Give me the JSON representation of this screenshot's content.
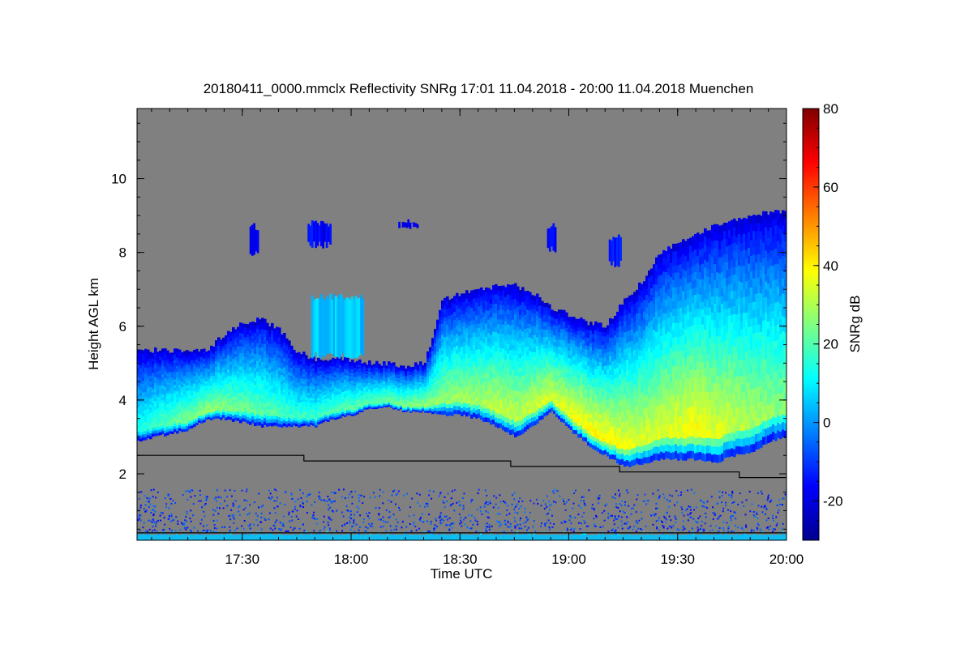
{
  "chart_data": {
    "type": "heatmap",
    "title": "20180411_0000.mmclx Reflectivity SNRg   17:01 11.04.2018 - 20:00 11.04.2018 Muenchen",
    "xlabel": "Time UTC",
    "ylabel": "Height AGL km",
    "colorbar_label": "SNRg dB",
    "xlim_minutes": [
      1021,
      1200
    ],
    "ylim": [
      0.2,
      11.9
    ],
    "x_ticks": [
      {
        "value": 1050,
        "label": "17:30"
      },
      {
        "value": 1080,
        "label": "18:00"
      },
      {
        "value": 1110,
        "label": "18:30"
      },
      {
        "value": 1140,
        "label": "19:00"
      },
      {
        "value": 1170,
        "label": "19:30"
      },
      {
        "value": 1200,
        "label": "20:00"
      }
    ],
    "y_ticks": [
      {
        "value": 2,
        "label": "2"
      },
      {
        "value": 4,
        "label": "4"
      },
      {
        "value": 6,
        "label": "6"
      },
      {
        "value": 8,
        "label": "8"
      },
      {
        "value": 10,
        "label": "10"
      }
    ],
    "colorbar": {
      "range": [
        -30,
        80
      ],
      "ticks": [
        {
          "value": -20,
          "label": "-20"
        },
        {
          "value": 0,
          "label": "0"
        },
        {
          "value": 20,
          "label": "20"
        },
        {
          "value": 40,
          "label": "40"
        },
        {
          "value": 60,
          "label": "60"
        },
        {
          "value": 80,
          "label": "80"
        }
      ],
      "colormap": "jet"
    },
    "background_color": "#808080",
    "cloud_layer": {
      "times": [
        1021,
        1025,
        1030,
        1035,
        1040,
        1045,
        1050,
        1055,
        1060,
        1065,
        1070,
        1075,
        1080,
        1085,
        1090,
        1095,
        1100,
        1105,
        1110,
        1115,
        1120,
        1125,
        1130,
        1135,
        1140,
        1145,
        1150,
        1155,
        1160,
        1165,
        1170,
        1175,
        1180,
        1185,
        1190,
        1195,
        1200
      ],
      "base_km": [
        2.9,
        3.0,
        3.1,
        3.2,
        3.5,
        3.5,
        3.4,
        3.3,
        3.3,
        3.3,
        3.3,
        3.5,
        3.6,
        3.8,
        3.8,
        3.7,
        3.7,
        3.6,
        3.6,
        3.5,
        3.3,
        3.0,
        3.3,
        3.7,
        3.2,
        2.8,
        2.5,
        2.2,
        2.3,
        2.4,
        2.4,
        2.4,
        2.3,
        2.5,
        2.6,
        2.9,
        3.0
      ],
      "top_km": [
        5.4,
        5.35,
        5.35,
        5.35,
        5.35,
        5.8,
        6.1,
        6.2,
        5.9,
        5.3,
        5.1,
        5.1,
        5.1,
        5.0,
        5.0,
        4.9,
        5.0,
        6.7,
        6.9,
        7.0,
        7.1,
        7.1,
        6.9,
        6.5,
        6.3,
        6.1,
        6.0,
        6.7,
        7.2,
        8.0,
        8.3,
        8.5,
        8.7,
        8.9,
        9.0,
        9.1,
        9.1
      ],
      "peak_snr_db": [
        14,
        18,
        22,
        25,
        28,
        26,
        24,
        22,
        20,
        18,
        18,
        20,
        22,
        22,
        24,
        26,
        28,
        28,
        30,
        30,
        34,
        32,
        34,
        36,
        38,
        40,
        40,
        38,
        36,
        36,
        38,
        40,
        36,
        34,
        30,
        28,
        26
      ]
    },
    "upper_cloud_patches": [
      {
        "t_start": 1052,
        "t_end": 1054,
        "h_min": 7.9,
        "h_max": 8.8,
        "snr_db": -18
      },
      {
        "t_start": 1068,
        "t_end": 1074,
        "h_min": 8.1,
        "h_max": 8.9,
        "snr_db": -16
      },
      {
        "t_start": 1069,
        "t_end": 1083,
        "h_min": 5.1,
        "h_max": 6.9,
        "snr_db": 5
      },
      {
        "t_start": 1093,
        "t_end": 1098,
        "h_min": 8.6,
        "h_max": 8.9,
        "snr_db": -18
      },
      {
        "t_start": 1134,
        "t_end": 1136,
        "h_min": 8.0,
        "h_max": 8.8,
        "snr_db": -18
      },
      {
        "t_start": 1151,
        "t_end": 1154,
        "h_min": 7.6,
        "h_max": 8.5,
        "snr_db": -14
      }
    ],
    "boundary_layer": {
      "h_min": 0.2,
      "h_max": 1.6,
      "snr_db": -10
    },
    "reference_line": {
      "times": [
        1021,
        1067,
        1067,
        1124,
        1124,
        1154,
        1154,
        1187,
        1187,
        1200
      ],
      "heights_km": [
        2.5,
        2.5,
        2.35,
        2.35,
        2.2,
        2.2,
        2.05,
        2.05,
        1.9,
        1.9
      ],
      "lower_heights_km": [
        0.4,
        0.4,
        0.4,
        0.4,
        0.4,
        0.4,
        0.4,
        0.4,
        0.4,
        0.4
      ],
      "color": "#000000"
    }
  }
}
